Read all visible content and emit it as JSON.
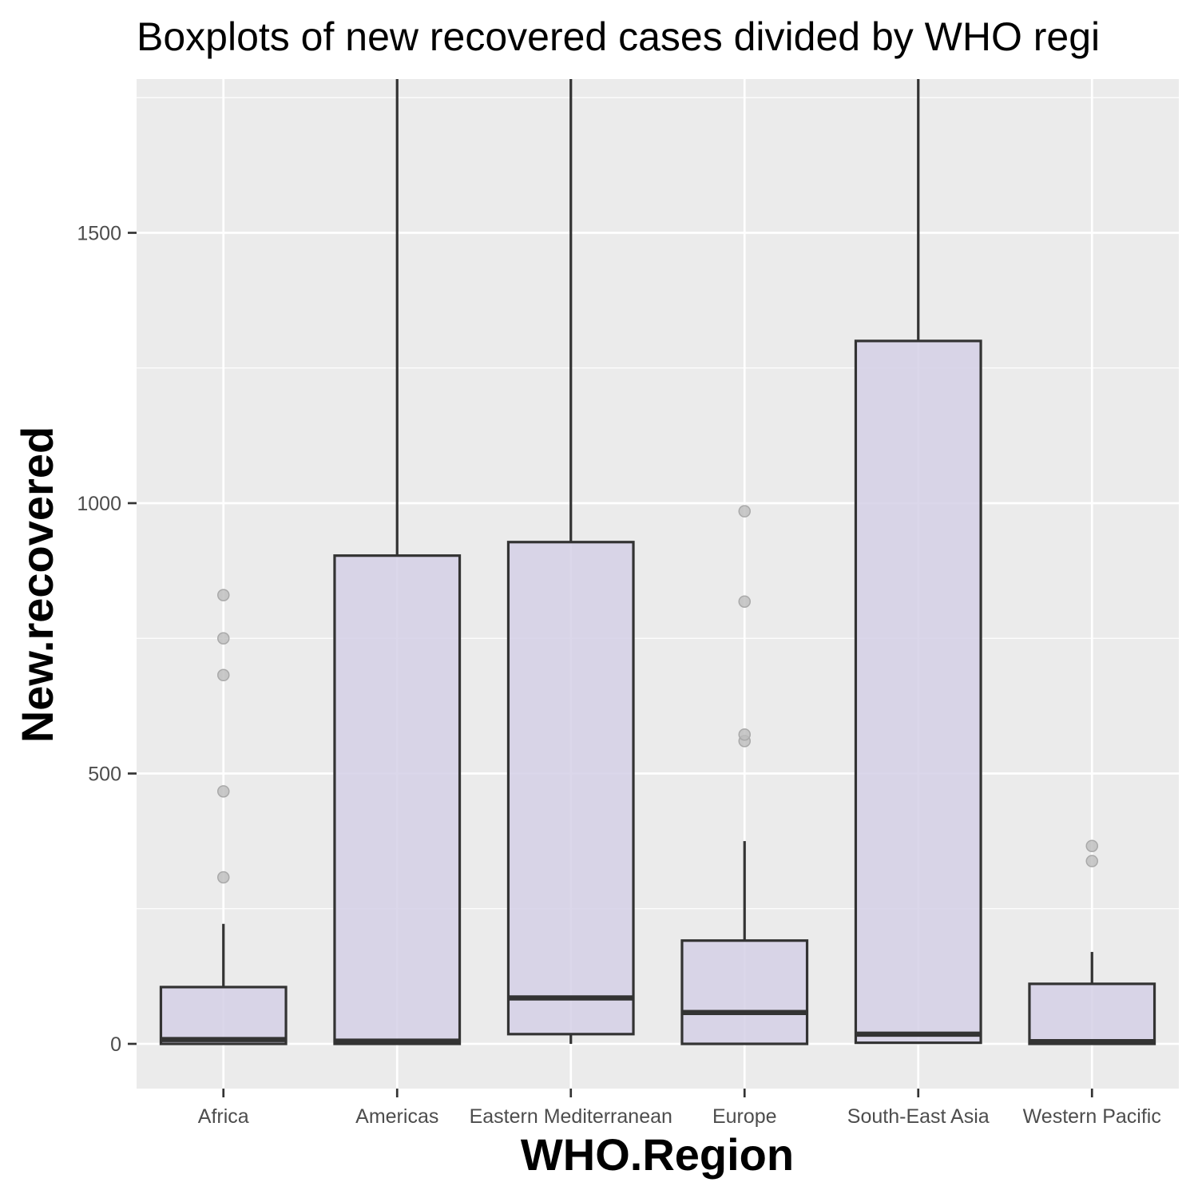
{
  "chart_data": {
    "type": "boxplot",
    "title": "Boxplots of new recovered cases divided by WHO regi",
    "xlabel": "WHO.Region",
    "ylabel": "New.recovered",
    "ylim": [
      -80,
      1790
    ],
    "y_ticks": [
      0,
      500,
      1000,
      1500
    ],
    "y_tick_labels": [
      "0",
      "500",
      "1000",
      "1500"
    ],
    "grid": true,
    "legend": "none",
    "colors": {
      "panel": "#EBEBEB",
      "grid": "#FFFFFF",
      "box_fill": "#D3CEE5",
      "box_line": "#333333",
      "outlier": "#BDBDBD",
      "tick_label": "#4D4D4D"
    },
    "categories": [
      "Africa",
      "Americas",
      "Eastern Mediterranean",
      "Europe",
      "South-East Asia",
      "Western Pacific"
    ],
    "boxes": [
      {
        "category": "Africa",
        "whisker_low": 0,
        "q1": 0,
        "median": 8,
        "q3": 105,
        "whisker_high": 222,
        "outliers": [
          308,
          467,
          682,
          750,
          830
        ]
      },
      {
        "category": "Americas",
        "whisker_low": 0,
        "q1": 0,
        "median": 5,
        "q3": 903,
        "whisker_high": 1790,
        "outliers": []
      },
      {
        "category": "Eastern Mediterranean",
        "whisker_low": 0,
        "q1": 18,
        "median": 85,
        "q3": 928,
        "whisker_high": 1790,
        "outliers": []
      },
      {
        "category": "Europe",
        "whisker_low": 0,
        "q1": 0,
        "median": 58,
        "q3": 191,
        "whisker_high": 375,
        "outliers": [
          560,
          572,
          818,
          985
        ]
      },
      {
        "category": "South-East Asia",
        "whisker_low": 2,
        "q1": 2,
        "median": 18,
        "q3": 1300,
        "whisker_high": 1790,
        "outliers": []
      },
      {
        "category": "Western Pacific",
        "whisker_low": 0,
        "q1": 0,
        "median": 4,
        "q3": 111,
        "whisker_high": 170,
        "outliers": [
          338,
          366
        ]
      }
    ]
  }
}
